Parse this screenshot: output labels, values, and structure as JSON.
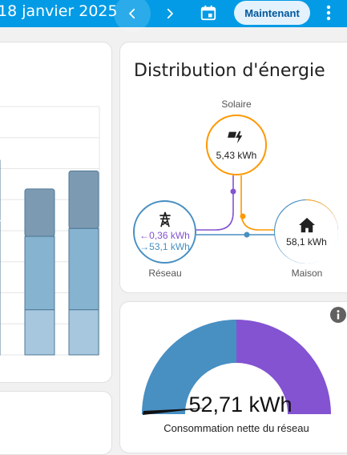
{
  "header": {
    "date": "18 janvier 2025",
    "now_label": "Maintenant",
    "icons": [
      "chevron-left-icon",
      "chevron-right-icon",
      "calendar-icon",
      "more-vertical-icon"
    ]
  },
  "distribution": {
    "title": "Distribution d'énergie",
    "solar": {
      "label": "Solaire",
      "value": "5,43 kWh"
    },
    "grid": {
      "label": "Réseau",
      "in_value": "←0,36 kWh",
      "out_value": "→53,1 kWh"
    },
    "home": {
      "label": "Maison",
      "value": "58,1 kWh"
    },
    "colors": {
      "solar": "#ff9800",
      "grid": "#488fc2",
      "grid_return": "#8353d1",
      "home": "#488fc2"
    }
  },
  "gauge": {
    "value": "52,71 kWh",
    "label": "Consommation nette du réseau",
    "fraction": 0.5,
    "colors": {
      "consumption": "#488fc2",
      "return": "#8353d1"
    }
  },
  "chart_data": {
    "type": "bar",
    "stacked": true,
    "categories": [
      "",
      "",
      "",
      ""
    ],
    "series": [
      {
        "values": [
          40,
          40,
          40,
          40
        ]
      },
      {
        "values": [
          78,
          78,
          65,
          72
        ]
      },
      {
        "values": [
          56,
          56,
          42,
          51
        ]
      }
    ],
    "colors": [
      "#a7c7df",
      "#86b3d0",
      "#7c9ab2"
    ],
    "grid": true
  }
}
